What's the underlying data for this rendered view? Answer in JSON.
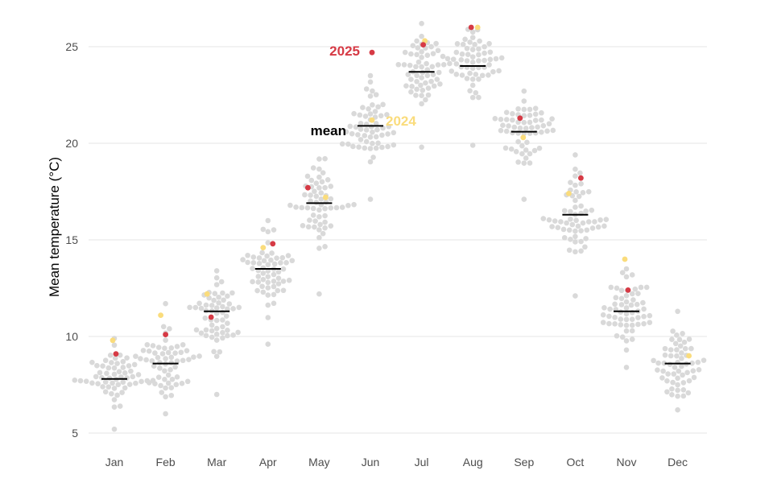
{
  "chart_data": {
    "type": "scatter",
    "subtype": "beeswarm",
    "title": "",
    "xlabel": "",
    "ylabel": "Mean temperature (°C)",
    "ylim": [
      4.6,
      26.6
    ],
    "yticks": [
      "5",
      "10",
      "15",
      "20",
      "25"
    ],
    "ytick_values": [
      5,
      10,
      15,
      20,
      25
    ],
    "grid": true,
    "categories": [
      "Jan",
      "Feb",
      "Mar",
      "Apr",
      "May",
      "Jun",
      "Jul",
      "Aug",
      "Sep",
      "Oct",
      "Nov",
      "Dec"
    ],
    "historical_range": {
      "min": [
        5.2,
        6.0,
        7.0,
        9.6,
        12.2,
        17.1,
        19.8,
        19.9,
        17.1,
        12.1,
        8.4,
        6.2
      ],
      "max": [
        9.9,
        11.7,
        13.4,
        16.0,
        19.2,
        23.5,
        26.2,
        25.9,
        22.7,
        19.4,
        13.5,
        11.3
      ]
    },
    "series": [
      {
        "name": "mean",
        "color": "#000000",
        "values": [
          7.8,
          8.6,
          11.3,
          13.5,
          16.9,
          20.9,
          23.7,
          24.0,
          20.6,
          16.3,
          11.3,
          8.6
        ]
      },
      {
        "name": "2025",
        "color": "#d63a45",
        "values": [
          9.1,
          10.1,
          11.0,
          14.8,
          17.7,
          24.7,
          25.1,
          26.0,
          21.3,
          18.2,
          12.4,
          null
        ]
      },
      {
        "name": "2024",
        "color": "#fadc7c",
        "values": [
          9.8,
          11.1,
          12.2,
          14.6,
          17.2,
          21.2,
          25.3,
          26.0,
          20.3,
          17.4,
          14.0,
          9.0
        ]
      }
    ],
    "annotations": [
      {
        "text": "2025",
        "color": "#d63a45"
      },
      {
        "text": "mean",
        "color": "#000000"
      },
      {
        "text": "2024",
        "color": "#fadc7c"
      }
    ],
    "colors": {
      "history": "#d9d9d9",
      "grid": "#e4e4e4",
      "tick_text": "#4d4d4d"
    }
  }
}
